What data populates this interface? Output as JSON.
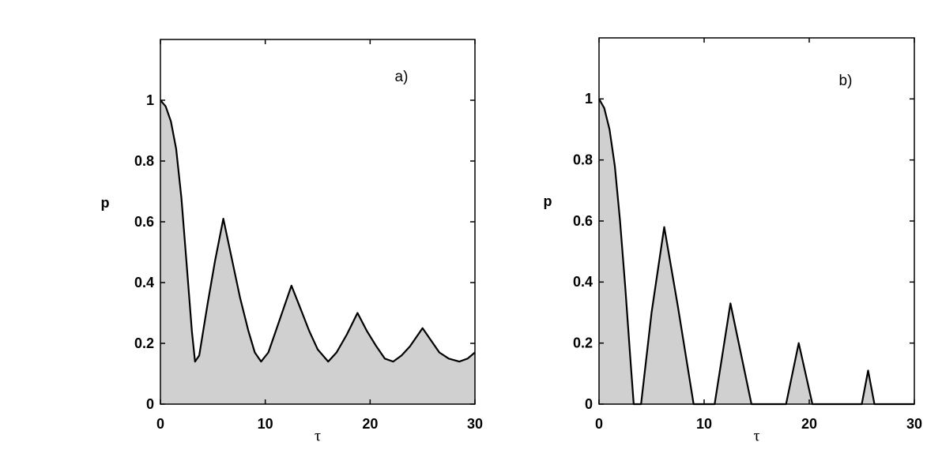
{
  "chart_data": [
    {
      "type": "area",
      "annotation": "a)",
      "xlabel": "τ",
      "ylabel": "p",
      "x": [
        0,
        0.5,
        1,
        1.5,
        2,
        2.5,
        3,
        3.3,
        3.7,
        4.5,
        5.2,
        6,
        6.8,
        7.6,
        8.4,
        9,
        9.6,
        10.3,
        11,
        11.8,
        12.5,
        13.3,
        14.2,
        15,
        16,
        16.8,
        17.8,
        18.8,
        19.7,
        20.6,
        21.4,
        22.2,
        23,
        23.8,
        25,
        25.8,
        26.6,
        27.5,
        28.5,
        29.3,
        30
      ],
      "values": [
        1,
        0.98,
        0.93,
        0.84,
        0.68,
        0.46,
        0.24,
        0.14,
        0.16,
        0.33,
        0.47,
        0.61,
        0.48,
        0.35,
        0.24,
        0.17,
        0.14,
        0.17,
        0.24,
        0.32,
        0.39,
        0.32,
        0.24,
        0.18,
        0.14,
        0.17,
        0.23,
        0.3,
        0.24,
        0.19,
        0.15,
        0.14,
        0.16,
        0.19,
        0.25,
        0.21,
        0.17,
        0.15,
        0.14,
        0.15,
        0.17
      ],
      "color": "#d0d0d0",
      "line_color": "#000000",
      "xlim": [
        0,
        30
      ],
      "ylim": [
        0,
        1.2
      ],
      "xticks": [
        0,
        10,
        20,
        30
      ],
      "yticks": [
        0,
        0.2,
        0.4,
        0.6,
        0.8,
        1
      ],
      "grid": false
    },
    {
      "type": "area",
      "annotation": "b)",
      "xlabel": "τ",
      "ylabel": "p",
      "x": [
        0,
        0.5,
        1,
        1.5,
        2,
        2.5,
        3,
        3.3,
        4,
        5,
        6.2,
        7.5,
        9,
        11,
        12.5,
        14.5,
        17.8,
        19,
        20.3,
        25,
        25.6,
        26.2,
        30
      ],
      "values": [
        1,
        0.97,
        0.9,
        0.78,
        0.6,
        0.38,
        0.14,
        0,
        0,
        0.3,
        0.58,
        0.32,
        0,
        0,
        0.33,
        0,
        0,
        0.2,
        0,
        0,
        0.11,
        0,
        0
      ],
      "color": "#d0d0d0",
      "line_color": "#000000",
      "xlim": [
        0,
        30
      ],
      "ylim": [
        0,
        1.2
      ],
      "xticks": [
        0,
        10,
        20,
        30
      ],
      "yticks": [
        0,
        0.2,
        0.4,
        0.6,
        0.8,
        1
      ],
      "grid": false
    }
  ]
}
